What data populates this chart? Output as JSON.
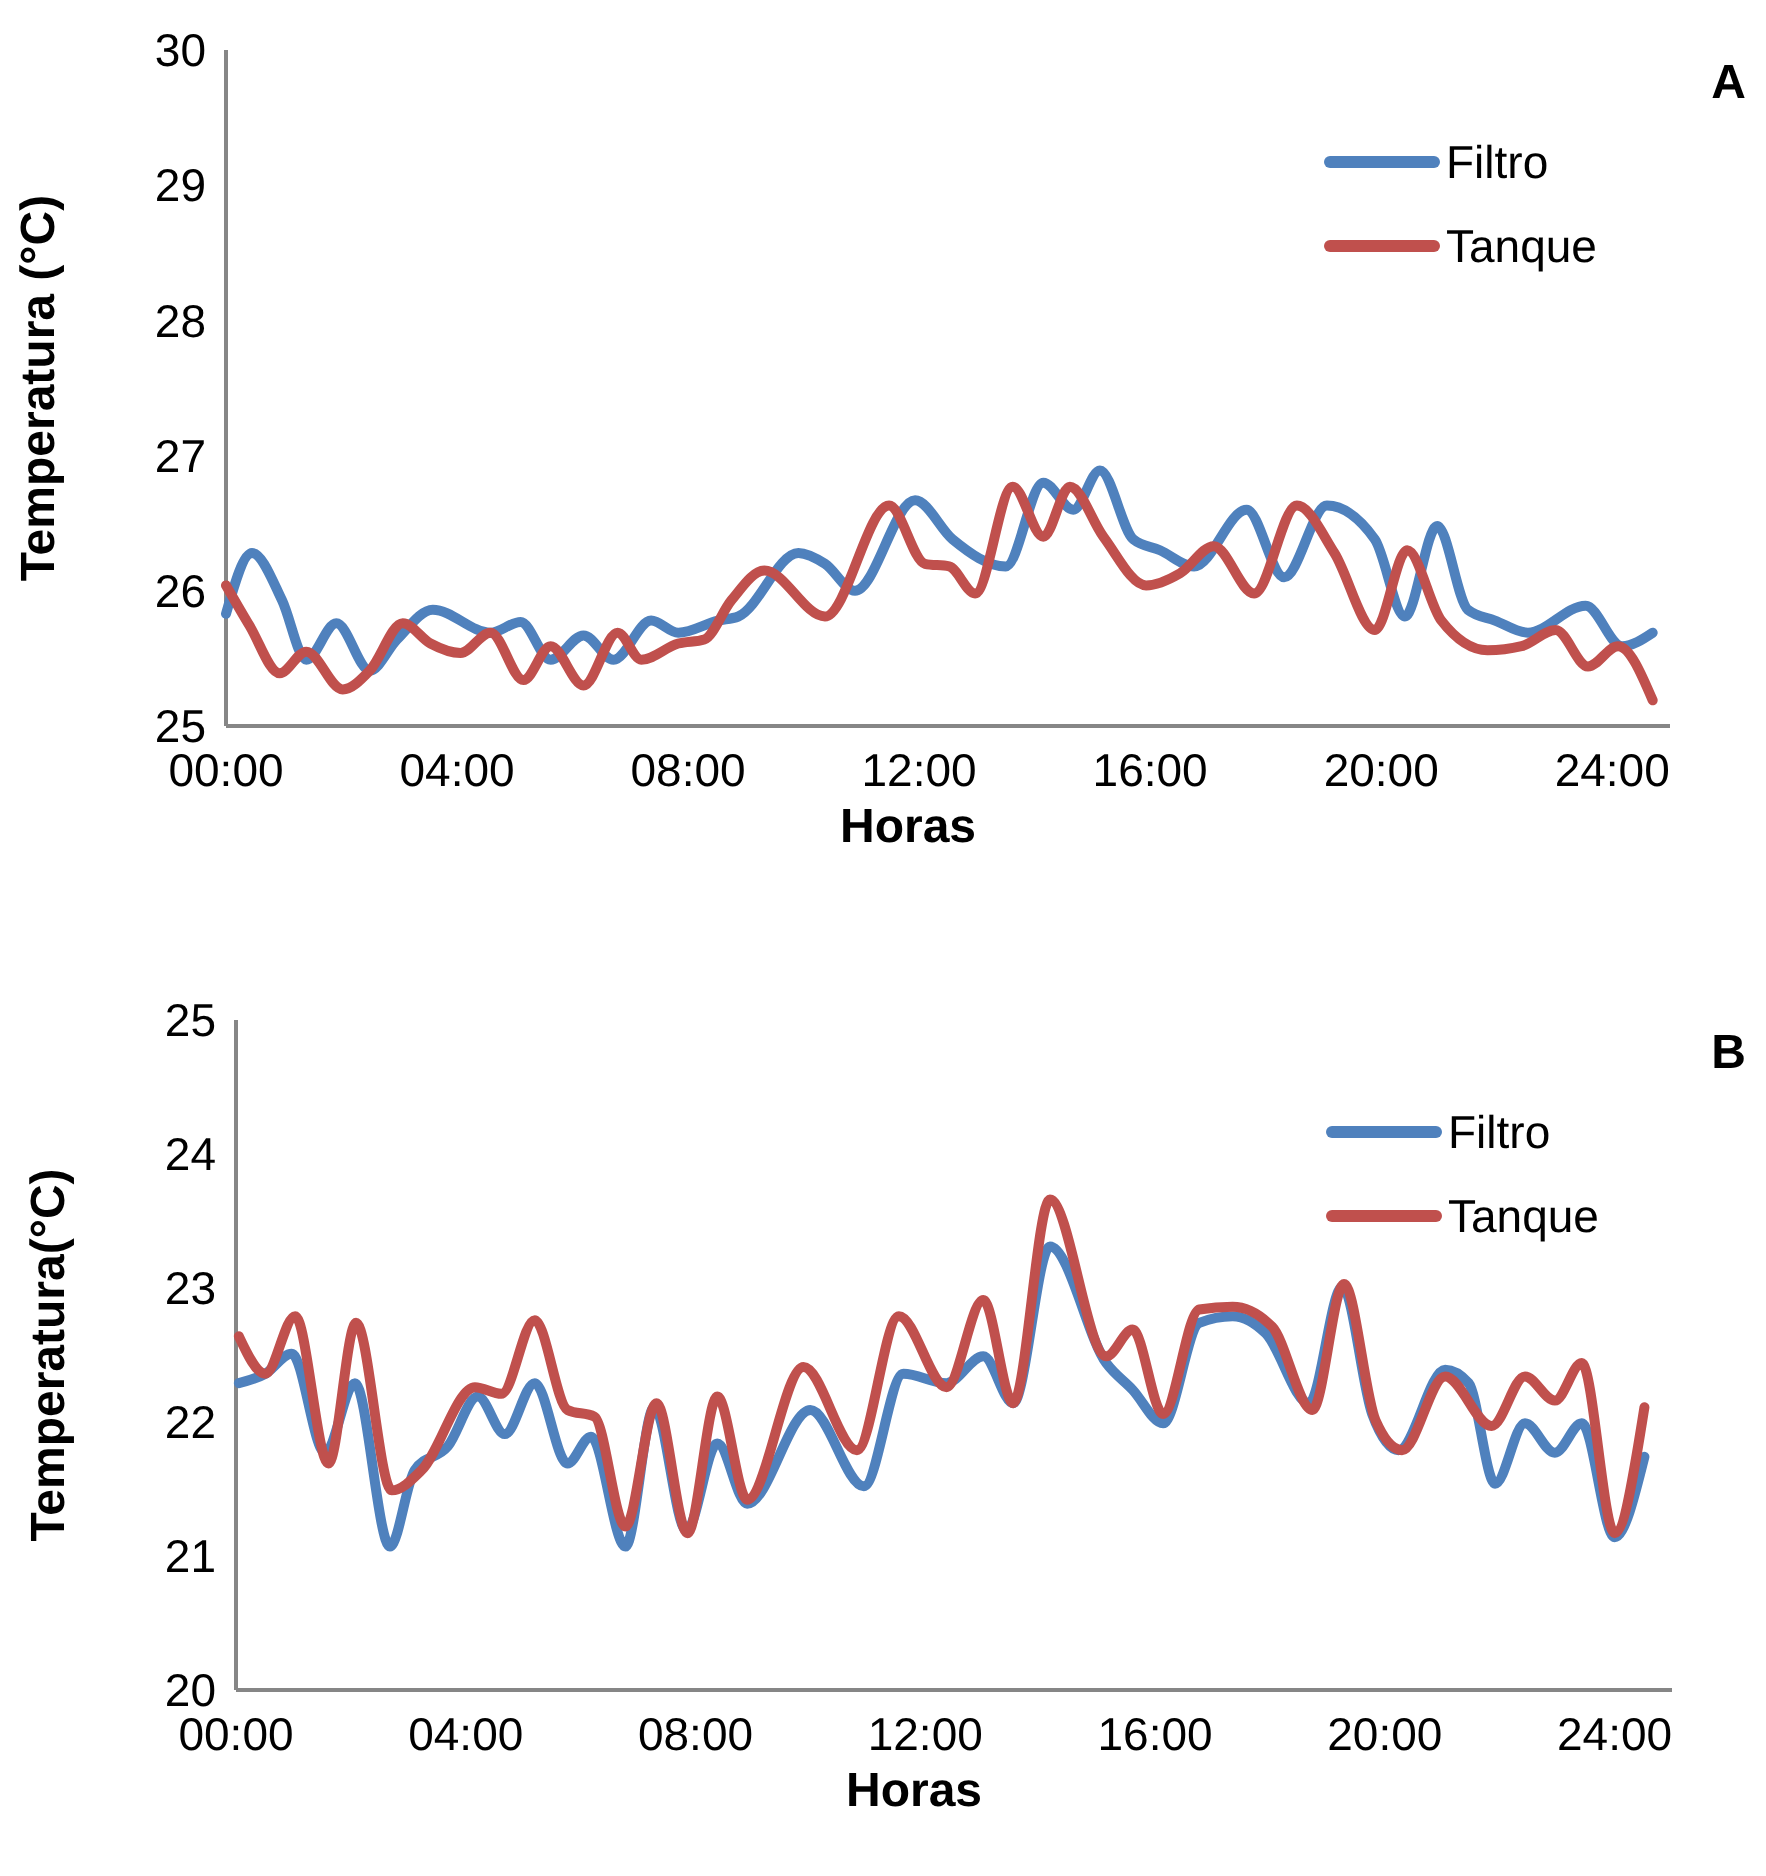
{
  "chart_data": [
    {
      "type": "line",
      "xlabel": "Horas",
      "ylabel": "Temperatura (°C)",
      "annotations": [
        "A"
      ],
      "legend": "top right",
      "grid": false,
      "marker": "none",
      "line_style": "solid",
      "xlim": [
        0,
        25
      ],
      "xticks": [
        {
          "value": 0,
          "label": "00:00"
        },
        {
          "value": 4,
          "label": "04:00"
        },
        {
          "value": 8,
          "label": "08:00"
        },
        {
          "value": 12,
          "label": "12:00"
        },
        {
          "value": 16,
          "label": "16:00"
        },
        {
          "value": 20,
          "label": "20:00"
        },
        {
          "value": 24,
          "label": "24:00"
        }
      ],
      "ylim": [
        25,
        30
      ],
      "yticks": [
        25,
        26,
        27,
        28,
        29,
        30
      ],
      "series": [
        {
          "name": "Filtro",
          "color": "#4f81bd",
          "x": [
            0,
            0.45,
            0.97,
            1.39,
            1.91,
            2.49,
            2.96,
            3.58,
            4.58,
            5.1,
            5.62,
            6.19,
            6.71,
            7.36,
            7.83,
            8.52,
            8.87,
            9.91,
            10.37,
            10.89,
            11.93,
            12.58,
            13.5,
            14.15,
            14.67,
            15.13,
            15.71,
            16.17,
            16.76,
            17.67,
            18.32,
            19.06,
            19.89,
            20.41,
            20.97,
            21.5,
            21.97,
            22.54,
            23.54,
            24.17,
            24.7
          ],
          "values": [
            25.83,
            26.28,
            25.93,
            25.49,
            25.76,
            25.41,
            25.64,
            25.86,
            25.69,
            25.77,
            25.49,
            25.67,
            25.49,
            25.78,
            25.69,
            25.78,
            25.81,
            26.28,
            26.2,
            26.0,
            26.67,
            26.38,
            26.18,
            26.8,
            26.6,
            26.89,
            26.38,
            26.3,
            26.18,
            26.6,
            26.1,
            26.63,
            26.38,
            25.81,
            26.48,
            25.86,
            25.78,
            25.69,
            25.89,
            25.59,
            25.69
          ]
        },
        {
          "name": "Tanque",
          "color": "#c0504d",
          "x": [
            0,
            0.41,
            0.93,
            1.39,
            2.02,
            2.49,
            3.06,
            3.54,
            4.06,
            4.58,
            5.15,
            5.62,
            6.19,
            6.78,
            7.19,
            7.83,
            8.28,
            8.75,
            9.32,
            10.37,
            11.48,
            12.1,
            12.52,
            12.97,
            13.62,
            14.15,
            14.61,
            15.19,
            15.93,
            16.52,
            17.1,
            17.8,
            18.54,
            19.19,
            19.89,
            20.45,
            21.04,
            21.84,
            22.43,
            23.02,
            23.58,
            24.1,
            24.7
          ],
          "values": [
            26.04,
            25.74,
            25.39,
            25.55,
            25.27,
            25.41,
            25.76,
            25.61,
            25.54,
            25.69,
            25.34,
            25.59,
            25.3,
            25.69,
            25.49,
            25.61,
            25.64,
            25.93,
            26.15,
            25.81,
            26.63,
            26.2,
            26.18,
            25.98,
            26.77,
            26.4,
            26.77,
            26.4,
            26.04,
            26.13,
            26.33,
            25.98,
            26.63,
            26.28,
            25.71,
            26.3,
            25.78,
            25.56,
            25.59,
            25.71,
            25.44,
            25.59,
            25.19
          ]
        }
      ]
    },
    {
      "type": "line",
      "xlabel": "Horas",
      "ylabel": "Temperatura(°C)",
      "annotations": [
        "B"
      ],
      "legend": "top right",
      "grid": false,
      "marker": "none",
      "line_style": "solid",
      "xlim": [
        0,
        25
      ],
      "xticks": [
        {
          "value": 0,
          "label": "00:00"
        },
        {
          "value": 4,
          "label": "04:00"
        },
        {
          "value": 8,
          "label": "08:00"
        },
        {
          "value": 12,
          "label": "12:00"
        },
        {
          "value": 16,
          "label": "16:00"
        },
        {
          "value": 20,
          "label": "20:00"
        },
        {
          "value": 24,
          "label": "24:00"
        }
      ],
      "ylim": [
        20,
        25
      ],
      "yticks": [
        20,
        21,
        22,
        23,
        24,
        25
      ],
      "series": [
        {
          "name": "Filtro",
          "color": "#4f81bd",
          "x": [
            0.05,
            0.51,
            0.97,
            1.55,
            2.07,
            2.68,
            3.11,
            3.69,
            4.21,
            4.68,
            5.2,
            5.77,
            6.18,
            6.78,
            7.28,
            7.84,
            8.38,
            8.9,
            10.0,
            10.93,
            11.62,
            12.37,
            13.01,
            13.53,
            14.17,
            15.15,
            15.61,
            16.14,
            16.77,
            17.35,
            17.93,
            18.68,
            19.26,
            19.78,
            20.24,
            21.05,
            21.46,
            21.92,
            22.44,
            22.96,
            23.43,
            24.0,
            24.52
          ],
          "values": [
            22.29,
            22.36,
            22.51,
            21.77,
            22.29,
            21.07,
            21.64,
            21.82,
            22.19,
            21.91,
            22.29,
            21.69,
            21.89,
            21.07,
            22.11,
            21.19,
            21.84,
            21.39,
            22.09,
            21.52,
            22.36,
            22.29,
            22.49,
            22.14,
            23.31,
            22.44,
            22.24,
            21.99,
            22.74,
            22.79,
            22.66,
            22.14,
            23.01,
            22.06,
            21.79,
            22.39,
            22.29,
            21.54,
            21.99,
            21.77,
            21.99,
            21.14,
            21.74
          ]
        },
        {
          "name": "Tanque",
          "color": "#c0504d",
          "x": [
            0.05,
            0.51,
            1.03,
            1.61,
            2.09,
            2.71,
            3.23,
            4.16,
            4.62,
            5.2,
            5.77,
            6.24,
            6.78,
            7.32,
            7.86,
            8.38,
            8.9,
            9.88,
            10.81,
            11.54,
            12.37,
            13.01,
            13.53,
            14.17,
            15.15,
            15.61,
            16.14,
            16.77,
            17.35,
            18.04,
            18.74,
            19.29,
            19.84,
            20.3,
            21.05,
            21.86,
            22.44,
            22.96,
            23.43,
            24.0,
            24.52
          ],
          "values": [
            22.64,
            22.36,
            22.79,
            21.69,
            22.74,
            21.49,
            21.64,
            22.26,
            22.21,
            22.76,
            22.09,
            22.04,
            21.22,
            22.14,
            21.17,
            22.19,
            21.42,
            22.41,
            21.79,
            22.79,
            22.26,
            22.91,
            22.14,
            23.66,
            22.49,
            22.69,
            22.06,
            22.84,
            22.86,
            22.71,
            22.09,
            23.03,
            22.01,
            21.79,
            22.34,
            21.97,
            22.34,
            22.16,
            22.44,
            21.17,
            22.11
          ]
        }
      ]
    }
  ]
}
